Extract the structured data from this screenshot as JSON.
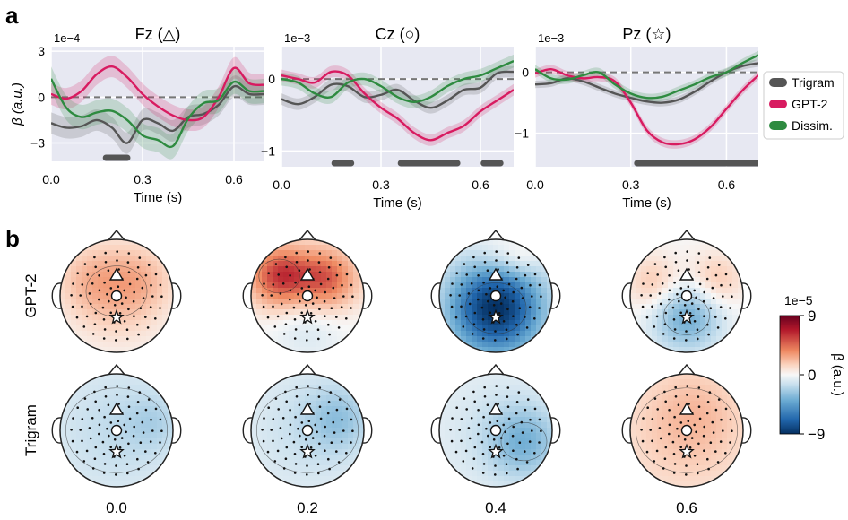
{
  "panel_labels": [
    "a",
    "b"
  ],
  "colors": {
    "Trigram": "#555555",
    "GPT-2": "#d81b60",
    "Dissim.": "#2e8b40",
    "plot_bg": "#e7e8f2",
    "sig_bar": "#555555"
  },
  "chart_data": [
    {
      "type": "line",
      "title": "Fz (△)",
      "exponent": "1e−4",
      "xlabel": "Time (s)",
      "ylabel": "β (a.u.)",
      "xlim": [
        0.0,
        0.7
      ],
      "ylim": [
        -4.2,
        3.3
      ],
      "xticks": [
        0.0,
        0.3,
        0.6
      ],
      "xtick_labels": [
        "0.0",
        "0.3",
        "0.6"
      ],
      "yticks": [
        3,
        0,
        -3
      ],
      "ytick_labels": [
        "3",
        "0",
        "−3"
      ],
      "x": [
        0.0,
        0.05,
        0.1,
        0.15,
        0.2,
        0.25,
        0.3,
        0.35,
        0.4,
        0.45,
        0.5,
        0.55,
        0.6,
        0.65,
        0.7
      ],
      "series": [
        {
          "name": "Trigram",
          "values": [
            -1.7,
            -2.0,
            -1.9,
            -1.5,
            -2.0,
            -3.0,
            -1.5,
            -1.7,
            -2.2,
            -1.3,
            -1.1,
            -0.5,
            0.7,
            0.2,
            0.2
          ]
        },
        {
          "name": "GPT-2",
          "values": [
            0.2,
            -0.1,
            0.4,
            1.5,
            2.0,
            1.3,
            0.2,
            -0.6,
            -1.2,
            -1.5,
            -1.3,
            0.0,
            1.9,
            0.9,
            0.8
          ]
        },
        {
          "name": "Dissim.",
          "values": [
            1.2,
            -0.7,
            -1.3,
            -1.0,
            -0.9,
            -1.5,
            -2.5,
            -2.8,
            -3.2,
            -1.4,
            -0.4,
            -0.2,
            1.0,
            0.4,
            0.4
          ]
        }
      ],
      "band": [
        0.7,
        0.7,
        0.8
      ],
      "baseline": 0,
      "sig_bars": [
        [
          0.18,
          0.25
        ]
      ]
    },
    {
      "type": "line",
      "title": "Cz (○)",
      "exponent": "1e−3",
      "xlabel": "Time (s)",
      "ylabel": "",
      "xlim": [
        0.0,
        0.7
      ],
      "ylim": [
        -1.22,
        0.45
      ],
      "xticks": [
        0.0,
        0.3,
        0.6
      ],
      "xtick_labels": [
        "0.0",
        "0.3",
        "0.6"
      ],
      "yticks": [
        0,
        -1
      ],
      "ytick_labels": [
        "0",
        "−1"
      ],
      "x": [
        0.0,
        0.05,
        0.1,
        0.15,
        0.2,
        0.25,
        0.3,
        0.35,
        0.4,
        0.45,
        0.5,
        0.55,
        0.6,
        0.65,
        0.7
      ],
      "series": [
        {
          "name": "Trigram",
          "values": [
            -0.28,
            -0.35,
            -0.25,
            -0.08,
            -0.1,
            -0.25,
            -0.22,
            -0.15,
            -0.3,
            -0.4,
            -0.3,
            -0.15,
            -0.12,
            0.08,
            0.1
          ]
        },
        {
          "name": "GPT-2",
          "values": [
            0.05,
            0.0,
            -0.05,
            0.1,
            0.05,
            -0.2,
            -0.4,
            -0.55,
            -0.75,
            -0.85,
            -0.75,
            -0.65,
            -0.45,
            -0.3,
            -0.15
          ]
        },
        {
          "name": "Dissim.",
          "values": [
            0.0,
            -0.05,
            -0.2,
            -0.25,
            -0.05,
            0.0,
            -0.1,
            -0.25,
            -0.32,
            -0.25,
            -0.1,
            0.0,
            0.05,
            0.15,
            0.25
          ]
        }
      ],
      "band": [
        0.08,
        0.08,
        0.09
      ],
      "baseline": 0,
      "sig_bars": [
        [
          0.16,
          0.21
        ],
        [
          0.36,
          0.53
        ],
        [
          0.61,
          0.66
        ]
      ]
    },
    {
      "type": "line",
      "title": "Pz (☆)",
      "exponent": "1e−3",
      "xlabel": "Time (s)",
      "ylabel": "",
      "xlim": [
        0.0,
        0.7
      ],
      "ylim": [
        -1.55,
        0.42
      ],
      "xticks": [
        0.0,
        0.3,
        0.6
      ],
      "xtick_labels": [
        "0.0",
        "0.3",
        "0.6"
      ],
      "yticks": [
        0,
        -1
      ],
      "ytick_labels": [
        "0",
        "−1"
      ],
      "x": [
        0.0,
        0.05,
        0.1,
        0.15,
        0.2,
        0.25,
        0.3,
        0.35,
        0.4,
        0.45,
        0.5,
        0.55,
        0.6,
        0.65,
        0.7
      ],
      "series": [
        {
          "name": "Trigram",
          "values": [
            -0.2,
            -0.18,
            -0.1,
            -0.15,
            -0.25,
            -0.35,
            -0.42,
            -0.48,
            -0.5,
            -0.45,
            -0.32,
            -0.15,
            0.0,
            0.1,
            0.15
          ]
        },
        {
          "name": "GPT-2",
          "values": [
            -0.02,
            0.05,
            -0.05,
            -0.1,
            -0.08,
            -0.15,
            -0.5,
            -0.95,
            -1.15,
            -1.18,
            -1.1,
            -0.9,
            -0.6,
            -0.3,
            -0.05
          ]
        },
        {
          "name": "Dissim.",
          "values": [
            0.05,
            -0.1,
            -0.12,
            -0.05,
            0.0,
            -0.2,
            -0.35,
            -0.42,
            -0.4,
            -0.3,
            -0.2,
            -0.08,
            0.0,
            0.15,
            0.28
          ]
        }
      ],
      "band": [
        0.06,
        0.07,
        0.07
      ],
      "baseline": 0,
      "sig_bars": [
        [
          0.32,
          0.7
        ]
      ]
    },
    {
      "type": "heatmap",
      "rows": [
        "GPT-2",
        "Trigram"
      ],
      "columns": [
        "0.0",
        "0.2",
        "0.4",
        "0.6"
      ],
      "centers": [
        [
          [
            {
              "x": 0,
              "y": -0.08,
              "r": 0.6,
              "v": 0.25
            },
            {
              "x": -0.5,
              "y": -0.3,
              "r": 0.4,
              "v": 0.15
            },
            {
              "x": 0.45,
              "y": -0.3,
              "r": 0.4,
              "v": 0.15
            }
          ],
          [
            {
              "x": -0.5,
              "y": -0.35,
              "r": 0.4,
              "v": 0.65
            },
            {
              "x": 0.35,
              "y": -0.3,
              "r": 0.4,
              "v": 0.55
            },
            {
              "x": 0,
              "y": 0.5,
              "r": 0.45,
              "v": -0.12
            }
          ],
          [
            {
              "x": 0,
              "y": 0.22,
              "r": 0.6,
              "v": -1.0
            },
            {
              "x": 0,
              "y": -0.7,
              "r": 0.3,
              "v": 0.12
            },
            {
              "x": 0.45,
              "y": -0.65,
              "r": 0.25,
              "v": 0.15
            }
          ],
          [
            {
              "x": 0,
              "y": 0.35,
              "r": 0.45,
              "v": -0.45
            },
            {
              "x": -0.55,
              "y": -0.2,
              "r": 0.35,
              "v": 0.25
            },
            {
              "x": 0.5,
              "y": -0.25,
              "r": 0.35,
              "v": 0.25
            }
          ]
        ],
        [
          [
            {
              "x": 0,
              "y": 0,
              "r": 1.0,
              "v": -0.18
            },
            {
              "x": 0.65,
              "y": -0.15,
              "r": 0.35,
              "v": -0.12
            }
          ],
          [
            {
              "x": 0,
              "y": 0,
              "r": 1.0,
              "v": -0.15
            },
            {
              "x": 0.55,
              "y": -0.2,
              "r": 0.4,
              "v": -0.22
            }
          ],
          [
            {
              "x": 0.5,
              "y": 0.2,
              "r": 0.45,
              "v": -0.32
            },
            {
              "x": 0,
              "y": 0,
              "r": 1.0,
              "v": -0.12
            }
          ],
          [
            {
              "x": 0,
              "y": 0,
              "r": 1.0,
              "v": 0.2
            },
            {
              "x": 0.15,
              "y": -0.3,
              "r": 0.5,
              "v": 0.1
            }
          ]
        ]
      ],
      "colorbar": {
        "exponent": "1e−5",
        "label": "β (a.u.)",
        "ticks": [
          9,
          0,
          -9
        ],
        "tick_labels": [
          "9",
          "0",
          "−9"
        ],
        "range": [
          -9,
          9
        ]
      }
    }
  ]
}
